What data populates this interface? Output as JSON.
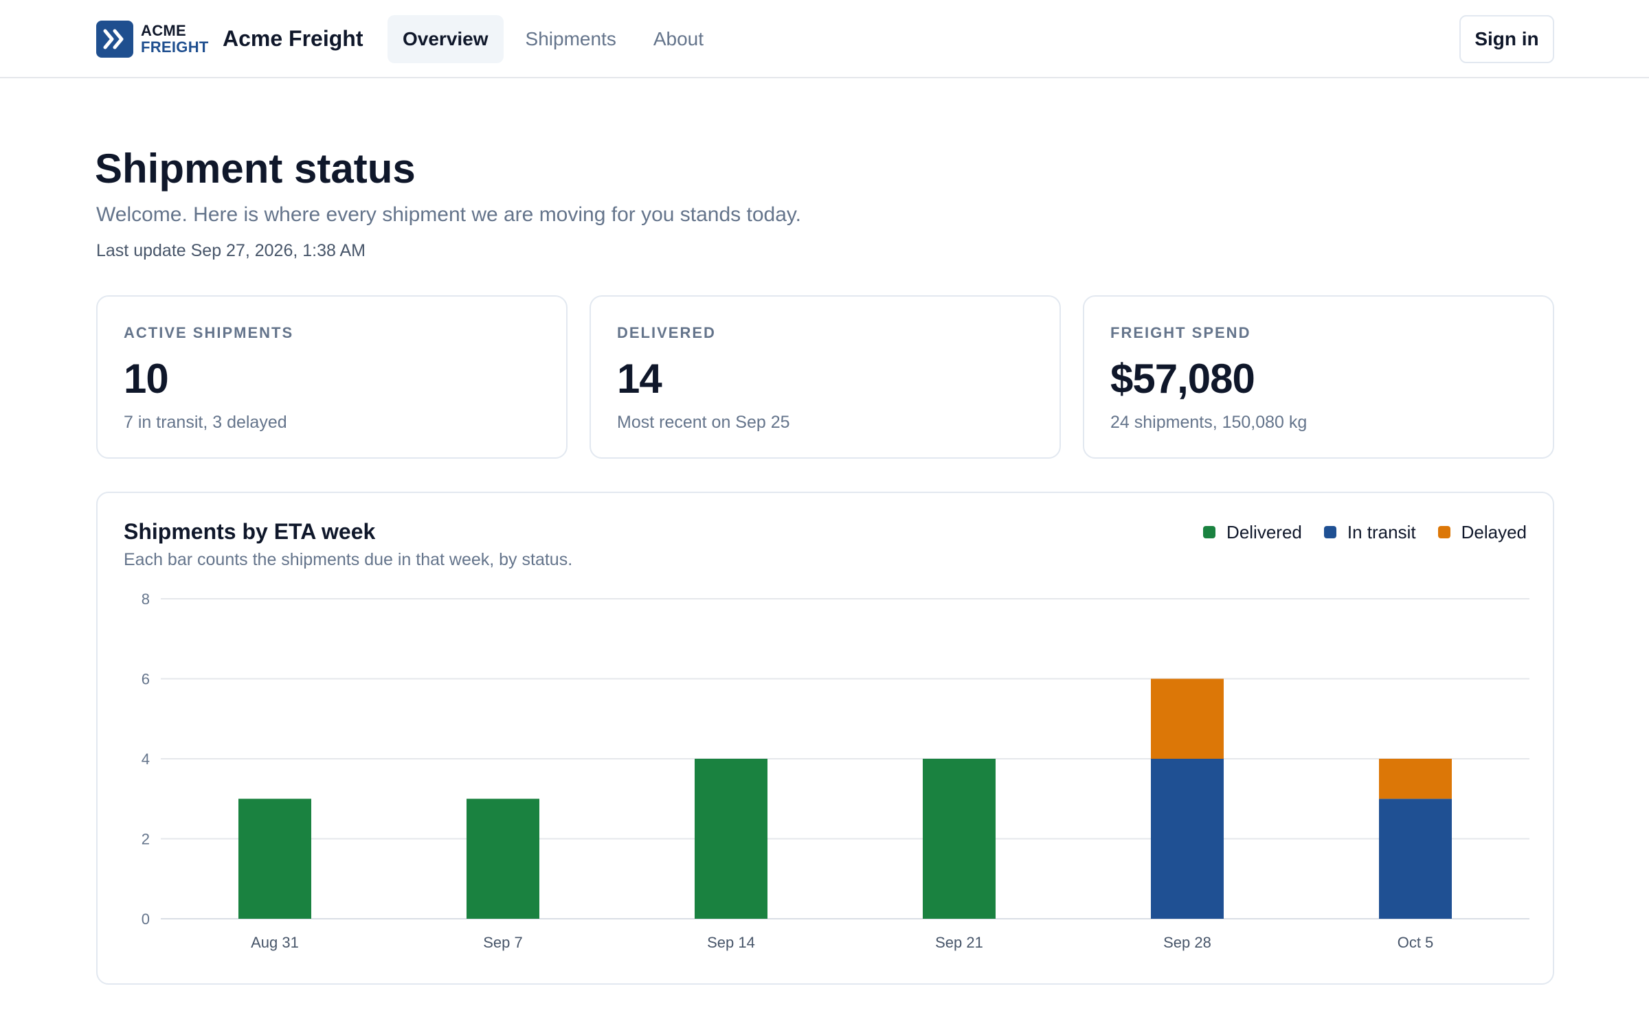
{
  "header": {
    "logo_line1": "ACME",
    "logo_line2": "FREIGHT",
    "brand_name": "Acme Freight",
    "tabs": [
      {
        "label": "Overview",
        "active": true
      },
      {
        "label": "Shipments",
        "active": false
      },
      {
        "label": "About",
        "active": false
      }
    ],
    "sign_in_label": "Sign in"
  },
  "page": {
    "title": "Shipment status",
    "subtitle": "Welcome. Here is where every shipment we are moving for you stands today.",
    "last_update": "Last update Sep 27, 2026, 1:38 AM"
  },
  "stats": [
    {
      "label": "ACTIVE SHIPMENTS",
      "value": "10",
      "note": "7 in transit, 3 delayed"
    },
    {
      "label": "DELIVERED",
      "value": "14",
      "note": "Most recent on Sep 25"
    },
    {
      "label": "FREIGHT SPEND",
      "value": "$57,080",
      "note": "24 shipments, 150,080 kg"
    }
  ],
  "chart_card": {
    "title": "Shipments by ETA week",
    "subtitle": "Each bar counts the shipments due in that week, by status."
  },
  "colors": {
    "brand": "#1f4f8f",
    "delivered": "#1a8240",
    "in_transit": "#1f5093",
    "delayed": "#dc7707"
  },
  "chart_data": {
    "type": "bar",
    "stacked": true,
    "categories": [
      "Aug 31",
      "Sep 7",
      "Sep 14",
      "Sep 21",
      "Sep 28",
      "Oct 5"
    ],
    "series": [
      {
        "name": "Delivered",
        "color": "#1a8240",
        "values": [
          3,
          3,
          4,
          4,
          0,
          0
        ]
      },
      {
        "name": "In transit",
        "color": "#1f5093",
        "values": [
          0,
          0,
          0,
          0,
          4,
          3
        ]
      },
      {
        "name": "Delayed",
        "color": "#dc7707",
        "values": [
          0,
          0,
          0,
          0,
          2,
          1
        ]
      }
    ],
    "yticks": [
      0,
      2,
      4,
      6,
      8
    ],
    "ylim": [
      0,
      8
    ],
    "grid": true,
    "legend_position": "top-right"
  }
}
